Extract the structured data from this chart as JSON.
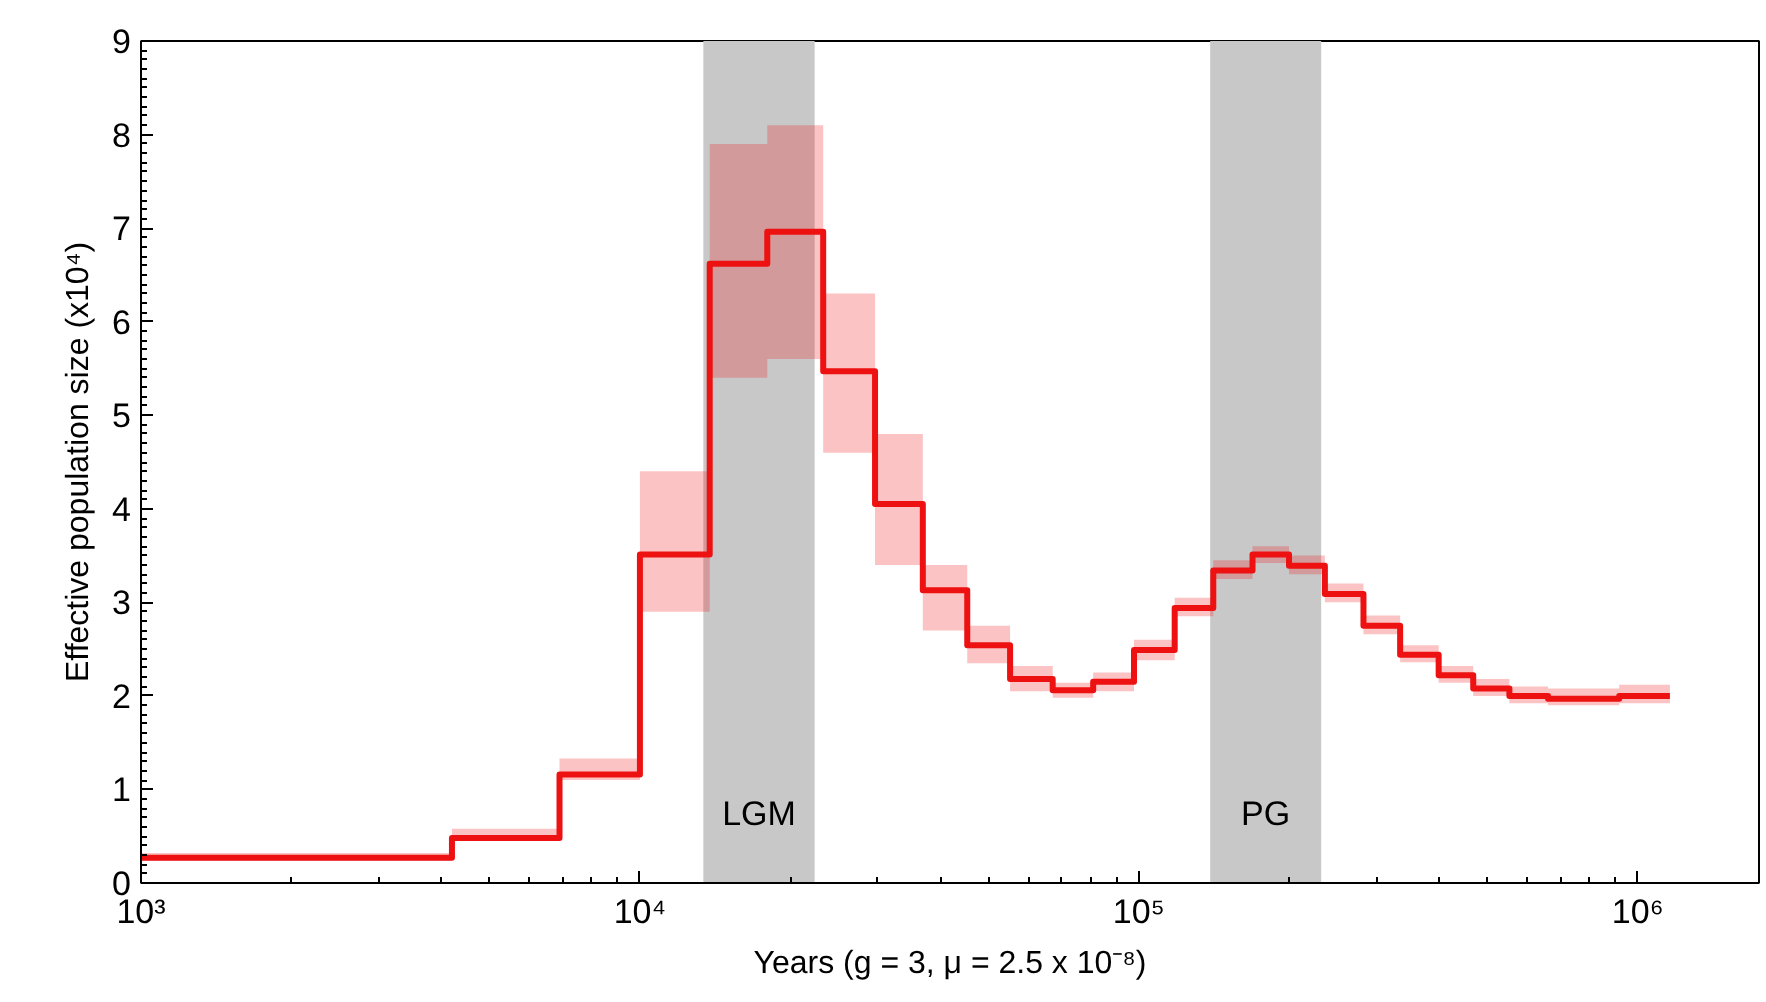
{
  "chart_data": {
    "type": "step",
    "xlabel": "Years (g = 3, μ = 2.5 x 10⁻⁸)",
    "ylabel": "Effective population size (x10⁴)",
    "log": "x",
    "xlim": [
      1000,
      1750000
    ],
    "ylim": [
      0,
      9
    ],
    "xticks": [
      {
        "value": 1000,
        "label": "10³"
      },
      {
        "value": 10000,
        "label": "10⁴"
      },
      {
        "value": 100000,
        "label": "10⁵"
      },
      {
        "value": 1000000,
        "label": "10⁶"
      }
    ],
    "yticks": [
      0,
      1,
      2,
      3,
      4,
      5,
      6,
      7,
      8,
      9
    ],
    "grid": false,
    "marker": "none",
    "line_style": "solid",
    "bands": [
      {
        "axis": "x",
        "from": 13400,
        "to": 22400,
        "label": "LGM",
        "color": "#c8c8c8"
      },
      {
        "axis": "x",
        "from": 139000,
        "to": 232000,
        "label": "PG",
        "color": "#c8c8c8"
      }
    ],
    "series": [
      {
        "color": "#ee1111",
        "x": [
          1000,
          4200,
          6900,
          10000,
          13800,
          18000,
          23300,
          29600,
          36900,
          45300,
          55200,
          67200,
          81000,
          97800,
          118000,
          141000,
          169000,
          200000,
          236000,
          282000,
          334000,
          399000,
          468000,
          553000,
          661000,
          918000,
          1160000
        ],
        "values": [
          0.27,
          0.48,
          1.16,
          3.51,
          6.62,
          6.96,
          5.47,
          4.05,
          3.13,
          2.54,
          2.18,
          2.06,
          2.15,
          2.49,
          2.94,
          3.34,
          3.51,
          3.39,
          3.09,
          2.75,
          2.44,
          2.22,
          2.08,
          2.0,
          1.97,
          2.0,
          2.0
        ],
        "lower": [
          0.24,
          0.45,
          1.1,
          2.9,
          5.4,
          5.6,
          4.6,
          3.4,
          2.7,
          2.35,
          2.05,
          1.98,
          2.05,
          2.38,
          2.85,
          3.25,
          3.42,
          3.3,
          3.0,
          2.66,
          2.36,
          2.14,
          2.0,
          1.92,
          1.9,
          1.92,
          1.92
        ],
        "upper": [
          0.32,
          0.58,
          1.33,
          4.4,
          7.9,
          8.1,
          6.3,
          4.8,
          3.4,
          2.75,
          2.32,
          2.14,
          2.25,
          2.6,
          3.05,
          3.45,
          3.6,
          3.5,
          3.2,
          2.86,
          2.54,
          2.32,
          2.18,
          2.1,
          2.08,
          2.12,
          2.12
        ]
      }
    ]
  }
}
